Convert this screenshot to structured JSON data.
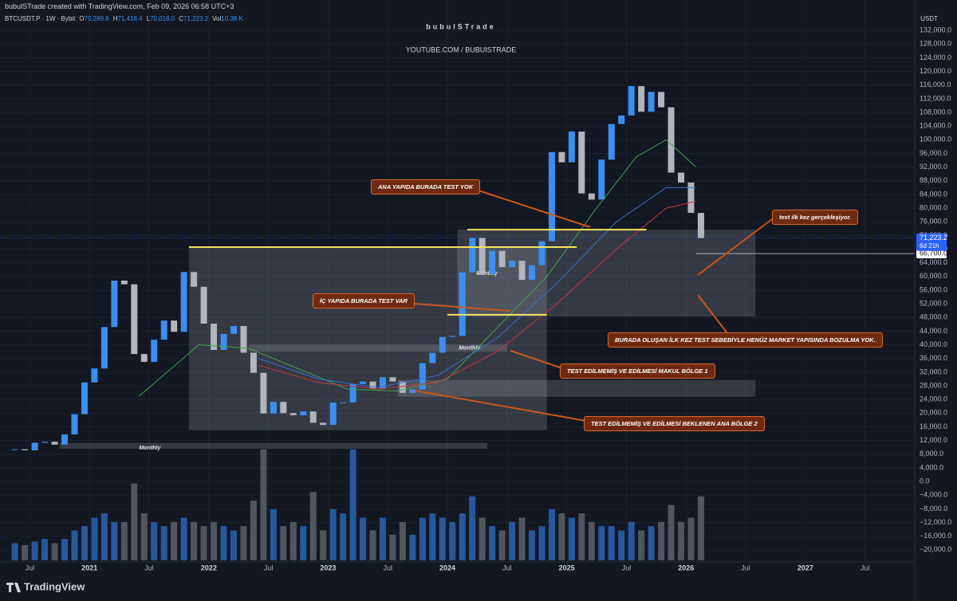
{
  "header": {
    "credit": "bubulSTrade created with TradingView.com, Feb 09, 2026 06:58 UTC+3",
    "symbol": "BTCUSDT.P · 1W · Bybit",
    "ohlc": [
      {
        "key": "O",
        "value": "70,289.8"
      },
      {
        "key": "H",
        "value": "71,418.4"
      },
      {
        "key": "L",
        "value": "70,018.0"
      },
      {
        "key": "C",
        "value": "71,223.2"
      },
      {
        "key": "Vol",
        "value": "10.38 K"
      }
    ],
    "watermark": "bubulSTrade",
    "channel": "YOUTUBE.COM / BUBUISTRADE",
    "currency": "USDT",
    "brand": "TradingView"
  },
  "chart_data": {
    "type": "candlestick",
    "up_color": "#3b8ff0",
    "down_color": "#b2b5be",
    "grid": true,
    "xlim": [
      "2020-04",
      "2027-12"
    ],
    "xticks": [
      {
        "value": "2020-07",
        "label": "Jul"
      },
      {
        "value": "2021-01",
        "label": "2021"
      },
      {
        "value": "2021-07",
        "label": "Jul"
      },
      {
        "value": "2022-01",
        "label": "2022"
      },
      {
        "value": "2022-07",
        "label": "Jul"
      },
      {
        "value": "2023-01",
        "label": "2023"
      },
      {
        "value": "2023-07",
        "label": "Jul"
      },
      {
        "value": "2024-01",
        "label": "2024"
      },
      {
        "value": "2024-07",
        "label": "Jul"
      },
      {
        "value": "2025-01",
        "label": "2025"
      },
      {
        "value": "2025-07",
        "label": "Jul"
      },
      {
        "value": "2026-01",
        "label": "2026"
      },
      {
        "value": "2026-07",
        "label": "Jul"
      },
      {
        "value": "2027-01",
        "label": "2027"
      },
      {
        "value": "2027-07",
        "label": "Jul"
      }
    ],
    "ylim": [
      -24000,
      136000
    ],
    "yticks": [
      {
        "value": 132000,
        "label": "132,000.0"
      },
      {
        "value": 128000,
        "label": "128,000.0"
      },
      {
        "value": 124000,
        "label": "124,000.0"
      },
      {
        "value": 120000,
        "label": "120,000.0"
      },
      {
        "value": 116000,
        "label": "116,000.0"
      },
      {
        "value": 112000,
        "label": "112,000.0"
      },
      {
        "value": 108000,
        "label": "108,000.0"
      },
      {
        "value": 104000,
        "label": "104,000.0"
      },
      {
        "value": 100000,
        "label": "100,000.0"
      },
      {
        "value": 96000,
        "label": "96,000.0"
      },
      {
        "value": 92000,
        "label": "92,000.0"
      },
      {
        "value": 88000,
        "label": "88,000.0"
      },
      {
        "value": 84000,
        "label": "84,000.0"
      },
      {
        "value": 80000,
        "label": "80,000.0"
      },
      {
        "value": 76000,
        "label": "76,000.0"
      },
      {
        "value": 72000,
        "label": "72,000.0"
      },
      {
        "value": 68000,
        "label": "68,000.0"
      },
      {
        "value": 64000,
        "label": "64,000.0"
      },
      {
        "value": 60000,
        "label": "60,000.0"
      },
      {
        "value": 56000,
        "label": "56,000.0"
      },
      {
        "value": 52000,
        "label": "52,000.0"
      },
      {
        "value": 48000,
        "label": "48,000.0"
      },
      {
        "value": 44000,
        "label": "44,000.0"
      },
      {
        "value": 40000,
        "label": "40,000.0"
      },
      {
        "value": 36000,
        "label": "36,000.0"
      },
      {
        "value": 32000,
        "label": "32,000.0"
      },
      {
        "value": 28000,
        "label": "28,000.0"
      },
      {
        "value": 24000,
        "label": "24,000.0"
      },
      {
        "value": 20000,
        "label": "20,000.0"
      },
      {
        "value": 16000,
        "label": "16,000.0"
      },
      {
        "value": 12000,
        "label": "12,000.0"
      },
      {
        "value": 8000,
        "label": "8,000.0"
      },
      {
        "value": 4000,
        "label": "4,000.0"
      },
      {
        "value": 0,
        "label": "0.0"
      },
      {
        "value": -4000,
        "label": "−4,000.0"
      },
      {
        "value": -8000,
        "label": "−8,000.0"
      },
      {
        "value": -12000,
        "label": "−12,000.0"
      },
      {
        "value": -16000,
        "label": "−16,000.0"
      },
      {
        "value": -20000,
        "label": "−20,000.0"
      }
    ],
    "x": [
      "2020-05",
      "2020-06",
      "2020-07",
      "2020-08",
      "2020-09",
      "2020-10",
      "2020-11",
      "2020-12",
      "2021-01",
      "2021-02",
      "2021-03",
      "2021-04",
      "2021-05",
      "2021-06",
      "2021-07",
      "2021-08",
      "2021-09",
      "2021-10",
      "2021-11",
      "2021-12",
      "2022-01",
      "2022-02",
      "2022-03",
      "2022-04",
      "2022-05",
      "2022-06",
      "2022-07",
      "2022-08",
      "2022-09",
      "2022-10",
      "2022-11",
      "2022-12",
      "2023-01",
      "2023-02",
      "2023-03",
      "2023-04",
      "2023-05",
      "2023-06",
      "2023-07",
      "2023-08",
      "2023-09",
      "2023-10",
      "2023-11",
      "2023-12",
      "2024-01",
      "2024-02",
      "2024-03",
      "2024-04",
      "2024-05",
      "2024-06",
      "2024-07",
      "2024-08",
      "2024-09",
      "2024-10",
      "2024-11",
      "2024-12",
      "2025-01",
      "2025-02",
      "2025-03",
      "2025-04",
      "2025-05",
      "2025-06",
      "2025-07",
      "2025-08",
      "2025-09",
      "2025-10",
      "2025-11",
      "2025-12",
      "2026-01",
      "2026-02"
    ],
    "values": [
      9450,
      9140,
      11350,
      11650,
      10780,
      13800,
      19700,
      29000,
      33100,
      45200,
      58800,
      57700,
      37300,
      35000,
      41500,
      47100,
      43800,
      61300,
      57000,
      46200,
      38500,
      43200,
      45500,
      37700,
      31800,
      19900,
      23300,
      20000,
      19400,
      20500,
      17200,
      16550,
      23100,
      23150,
      28500,
      29250,
      27200,
      30500,
      29250,
      25950,
      26970,
      34650,
      37700,
      42300,
      42600,
      61200,
      71300,
      60700,
      67500,
      62700,
      64600,
      59000,
      63300,
      70300,
      96400,
      93400,
      102400,
      84300,
      82500,
      94200,
      104600,
      107100,
      115700,
      108200,
      114000,
      109500,
      90400,
      87500,
      78600,
      71223.2
    ],
    "volume": {
      "vlim": [
        0,
        140
      ],
      "values": [
        20,
        18,
        22,
        25,
        20,
        25,
        35,
        40,
        50,
        55,
        45,
        45,
        90,
        55,
        45,
        40,
        45,
        50,
        45,
        40,
        45,
        40,
        35,
        40,
        70,
        130,
        60,
        40,
        45,
        40,
        80,
        35,
        60,
        55,
        130,
        50,
        35,
        50,
        30,
        45,
        30,
        50,
        55,
        50,
        45,
        55,
        75,
        50,
        40,
        35,
        45,
        50,
        35,
        40,
        60,
        55,
        50,
        55,
        45,
        40,
        40,
        35,
        45,
        35,
        40,
        45,
        65,
        45,
        50,
        75
      ]
    },
    "lines": [
      {
        "color": "#3fa34d",
        "x": [
          "2021-06",
          "2021-12",
          "2022-05",
          "2022-10",
          "2023-03",
          "2023-08",
          "2024-01",
          "2024-06",
          "2024-11",
          "2025-04",
          "2025-08",
          "2025-11",
          "2026-02"
        ],
        "values": [
          25000,
          40000,
          39000,
          33000,
          27000,
          26500,
          30000,
          45000,
          60000,
          80000,
          95000,
          100000,
          92000
        ]
      },
      {
        "color": "#3a6fd1",
        "x": [
          "2022-06",
          "2022-12",
          "2023-06",
          "2023-12",
          "2024-06",
          "2024-12",
          "2025-06",
          "2025-11",
          "2026-02"
        ],
        "values": [
          36000,
          30000,
          27500,
          31000,
          42000,
          58000,
          76000,
          86000,
          86000
        ]
      },
      {
        "color": "#c0393b",
        "x": [
          "2022-06",
          "2022-12",
          "2023-06",
          "2023-12",
          "2024-06",
          "2024-12",
          "2025-06",
          "2025-11",
          "2026-02"
        ],
        "values": [
          34000,
          29000,
          27000,
          29000,
          38000,
          52000,
          68000,
          80000,
          82000
        ]
      }
    ],
    "zones": [
      {
        "x0": "2021-11",
        "x1": "2024-11",
        "y0": 15000,
        "y1": 68600
      },
      {
        "x0": "2024-02",
        "x1": "2026-08",
        "y0": 48300,
        "y1": 73700,
        "label": "Monthly"
      },
      {
        "x0": "2022-05",
        "x1": "2024-07",
        "y0": 38000,
        "y1": 40100,
        "label": "Monthly"
      },
      {
        "x0": "2023-08",
        "x1": "2026-08",
        "y0": 24800,
        "y1": 29700
      },
      {
        "x0": "2020-10",
        "x1": "2024-05",
        "y0": 9600,
        "y1": 11300,
        "label": "Monthly"
      }
    ],
    "levels": [
      {
        "value": 68600,
        "x0": "2021-11",
        "x1": "2025-02",
        "color": "#f2e35a"
      },
      {
        "value": 73700,
        "x0": "2024-03",
        "x1": "2025-09",
        "color": "#f2e35a"
      },
      {
        "value": 48800,
        "x0": "2024-01",
        "x1": "2024-11",
        "color": "#f2e35a"
      }
    ],
    "price_line": {
      "value": 66700,
      "label": "66,700.0"
    },
    "last_price": {
      "value": 71223.2,
      "label": "71,223.2",
      "countdown": "6d 21h",
      "color": "#2962ff"
    },
    "annotations": [
      "ANA YAPIDA BURADA TEST YOK",
      "İÇ YAPIDA BURADA TEST VAR",
      "TEST EDİLMEMİŞ VE EDİLMESİ MAKUL BÖLGE 1",
      "TEST EDİLMEMİŞ VE EDİLMESİ BEKLENEN ANA BÖLGE 2",
      "test ilk kez gerçekleşiyor.",
      "BURADA OLUŞAN İLK KEZ TEST SEBEBİYLE HENÜZ MARKET YAPISINDA BOZULMA YOK."
    ]
  }
}
